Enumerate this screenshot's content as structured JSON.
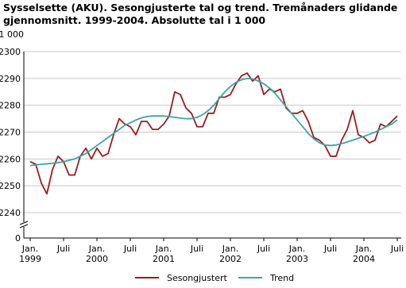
{
  "chart_data": {
    "type": "line",
    "title": "Sysselsette (AKU).  Sesongjusterte tal og trend. Tremånaders glidande gjennomsnitt. 1999-2004. Absolutte tal i 1 000",
    "y_unit_label": "1 000",
    "categories": [
      "Jan. 1999",
      null,
      null,
      null,
      null,
      null,
      "Juli",
      null,
      null,
      null,
      null,
      null,
      "Jan. 2000",
      null,
      null,
      null,
      null,
      null,
      "Juli",
      null,
      null,
      null,
      null,
      null,
      "Jan. 2001",
      null,
      null,
      null,
      null,
      null,
      "Juli",
      null,
      null,
      null,
      null,
      null,
      "Jan. 2002",
      null,
      null,
      null,
      null,
      null,
      "Juli",
      null,
      null,
      null,
      null,
      null,
      "Jan. 2003",
      null,
      null,
      null,
      null,
      null,
      "Juli",
      null,
      null,
      null,
      null,
      null,
      "Jan. 2004",
      null,
      null,
      null,
      null,
      null,
      "Juli"
    ],
    "series": [
      {
        "name": "Sesongjustert",
        "color": "#9b1c1f",
        "values": [
          2259,
          2258,
          2251,
          2247,
          2256,
          2261,
          2259,
          2254,
          2254,
          2261,
          2264,
          2260,
          2264,
          2261,
          2262,
          2269,
          2275,
          2273,
          2272,
          2269,
          2274,
          2274,
          2271,
          2271,
          2273,
          2276,
          2285,
          2284,
          2279,
          2277,
          2272,
          2272,
          2277,
          2277,
          2283,
          2283,
          2284,
          2288,
          2291,
          2292,
          2289,
          2291,
          2284,
          2286,
          2285,
          2286,
          2279,
          2277,
          2277,
          2278,
          2274,
          2268,
          2267,
          2265,
          2261,
          2261,
          2267,
          2271,
          2278,
          2269,
          2268,
          2266,
          2267,
          2273,
          2272,
          2274,
          2276
        ]
      },
      {
        "name": "Trend",
        "color": "#3aa6a0",
        "values": [
          2257.5,
          2257.8,
          2258,
          2258.2,
          2258.4,
          2258.6,
          2259,
          2259.5,
          2260,
          2261,
          2262,
          2263.5,
          2265,
          2266.5,
          2268,
          2269.5,
          2271,
          2272.5,
          2273.5,
          2274.5,
          2275.3,
          2275.8,
          2276,
          2276,
          2276,
          2275.8,
          2275.5,
          2275.2,
          2275,
          2275,
          2275.5,
          2276.5,
          2278,
          2280,
          2282.5,
          2285,
          2287,
          2288.5,
          2289.5,
          2290,
          2289.8,
          2289,
          2288,
          2286.5,
          2284.5,
          2282,
          2279.5,
          2277,
          2274.5,
          2272,
          2269.5,
          2267.5,
          2266,
          2265.2,
          2265,
          2265.2,
          2265.7,
          2266.3,
          2267,
          2267.7,
          2268.4,
          2269.2,
          2270,
          2271,
          2272,
          2273,
          2274.5
        ]
      }
    ],
    "ylim": [
      2240,
      2300
    ],
    "yticks": [
      0,
      2240,
      2250,
      2260,
      2270,
      2280,
      2290,
      2300
    ],
    "axis_break": true,
    "grid": true,
    "legend": "bottom"
  }
}
